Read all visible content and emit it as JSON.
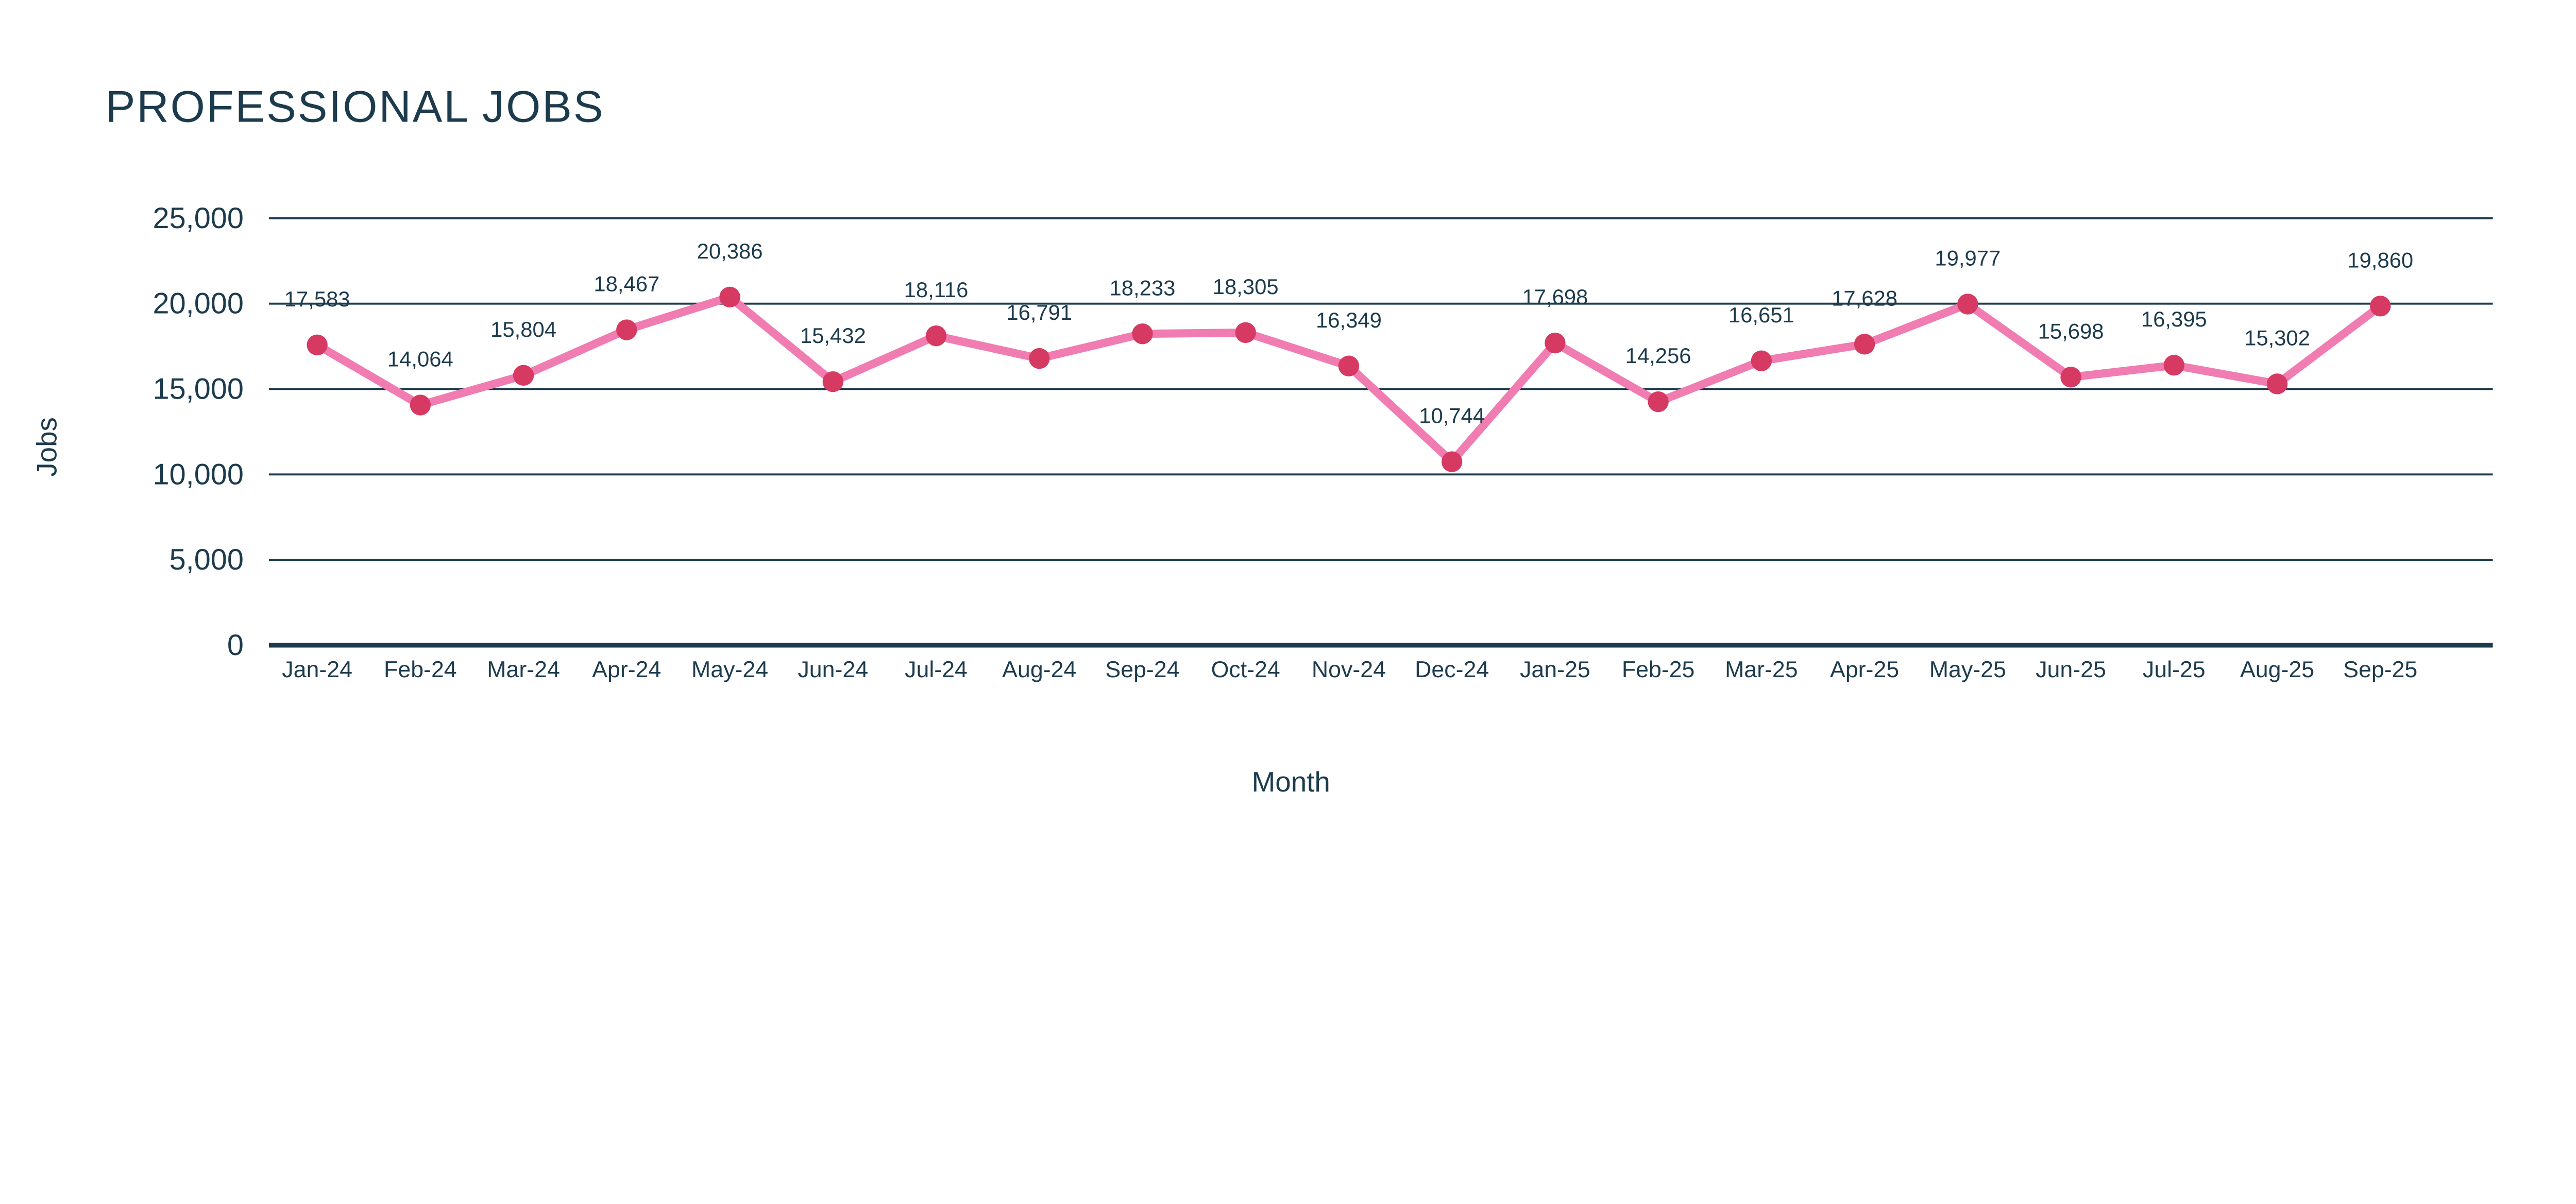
{
  "title": "PROFESSIONAL JOBS",
  "colors": {
    "text": "#1c3b4d",
    "grid": "#1c3b4d",
    "axis": "#1c3b4d",
    "line": "#f07cb1",
    "marker": "#d63a63",
    "background": "#ffffff"
  },
  "chart_data": {
    "type": "line",
    "title": "PROFESSIONAL JOBS",
    "xlabel": "Month",
    "ylabel": "Jobs",
    "categories": [
      "Jan-24",
      "Feb-24",
      "Mar-24",
      "Apr-24",
      "May-24",
      "Jun-24",
      "Jul-24",
      "Aug-24",
      "Sep-24",
      "Oct-24",
      "Nov-24",
      "Dec-24",
      "Jan-25",
      "Feb-25",
      "Mar-25",
      "Apr-25",
      "May-25",
      "Jun-25",
      "Jul-25",
      "Aug-25",
      "Sep-25"
    ],
    "values": [
      17583,
      14064,
      15804,
      18467,
      20386,
      15432,
      18116,
      16791,
      18233,
      18305,
      16349,
      10744,
      17698,
      14256,
      16651,
      17628,
      19977,
      15698,
      16395,
      15302,
      19860
    ],
    "data_labels": [
      "17,583",
      "14,064",
      "15,804",
      "18,467",
      "20,386",
      "15,432",
      "18,116",
      "16,791",
      "18,233",
      "18,305",
      "16,349",
      "10,744",
      "17,698",
      "14,256",
      "16,651",
      "17,628",
      "19,977",
      "15,698",
      "16,395",
      "15,302",
      "19,860"
    ],
    "ylim": [
      0,
      25000
    ],
    "ytick_interval": 5000,
    "ytick_labels": [
      "0",
      "5,000",
      "10,000",
      "15,000",
      "20,000",
      "25,000"
    ],
    "grid": "horizontal",
    "legend": "none",
    "show_point_labels": true
  }
}
